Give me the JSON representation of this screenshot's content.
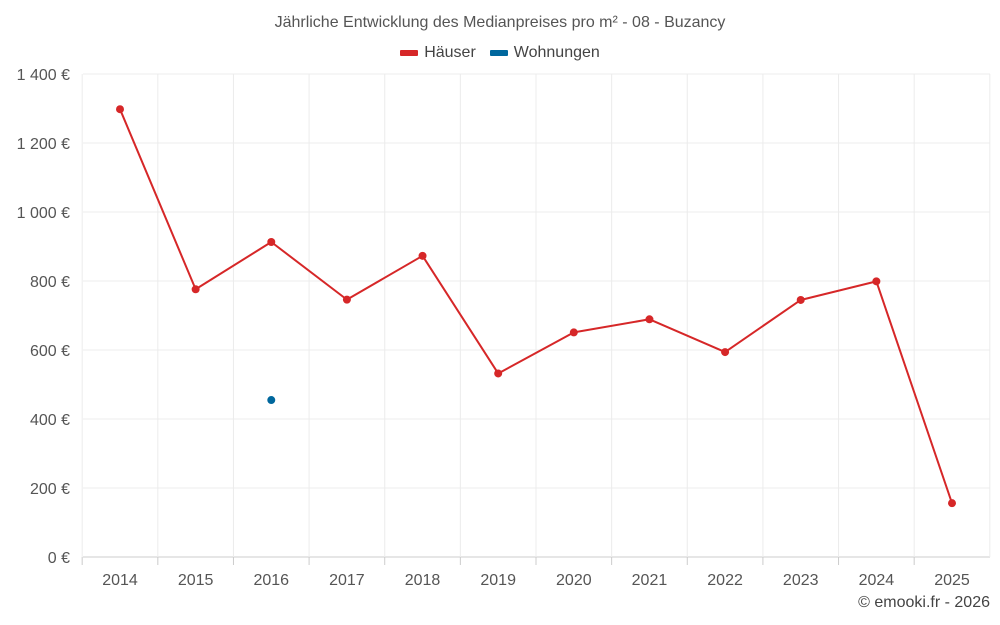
{
  "chart_data": {
    "type": "line",
    "title": "Jährliche Entwicklung des Medianpreises pro m² - 08 - Buzancy",
    "categories": [
      "2014",
      "2015",
      "2016",
      "2017",
      "2018",
      "2019",
      "2020",
      "2021",
      "2022",
      "2023",
      "2024",
      "2025"
    ],
    "series": [
      {
        "name": "Häuser",
        "color": "#d62728",
        "values": [
          1298,
          776,
          913,
          746,
          873,
          532,
          651,
          689,
          594,
          745,
          799,
          156
        ]
      },
      {
        "name": "Wohnungen",
        "color": "#00679d",
        "values": [
          null,
          null,
          455,
          null,
          null,
          null,
          null,
          null,
          null,
          null,
          null,
          null
        ]
      }
    ],
    "ylim": [
      0,
      1400
    ],
    "yticks": [
      0,
      200,
      400,
      600,
      800,
      1000,
      1200,
      1400
    ],
    "ytick_labels": [
      "0 €",
      "200 €",
      "400 €",
      "600 €",
      "800 €",
      "1 000 €",
      "1 200 €",
      "1 400 €"
    ],
    "xlabel": "",
    "ylabel": "",
    "grid": true,
    "legend": "top-center"
  },
  "legend": {
    "houses_label": "Häuser",
    "apartments_label": "Wohnungen",
    "houses_color": "#d62728",
    "apartments_color": "#00679d"
  },
  "footer": {
    "copyright": "© emooki.fr - 2026"
  }
}
